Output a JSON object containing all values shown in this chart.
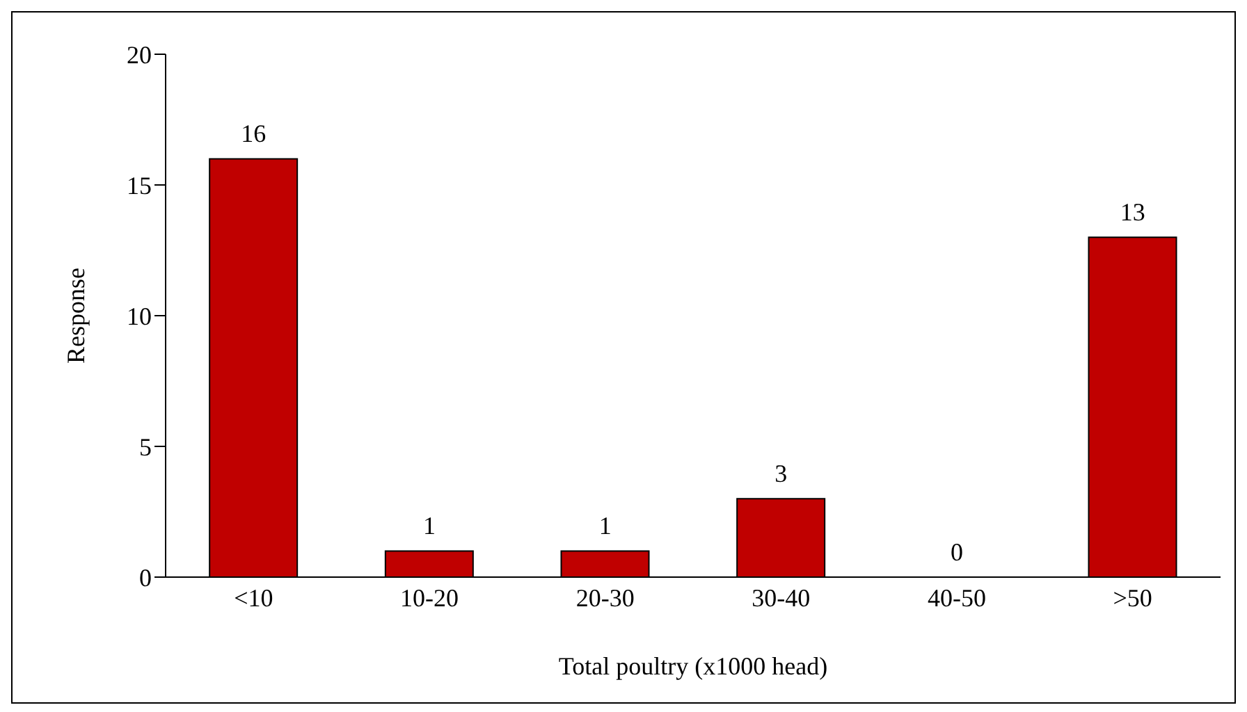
{
  "chart_data": {
    "type": "bar",
    "xlabel": "Total poultry (x1000 head)",
    "ylabel": "Response",
    "categories": [
      "<10",
      "10-20",
      "20-30",
      "30-40",
      "40-50",
      ">50"
    ],
    "values": [
      16,
      1,
      1,
      3,
      0,
      13
    ],
    "color": "#c00000",
    "ylim": [
      0,
      20
    ],
    "yticks": [
      0,
      5,
      10,
      15,
      20
    ],
    "grid": false,
    "data_labels": true
  }
}
